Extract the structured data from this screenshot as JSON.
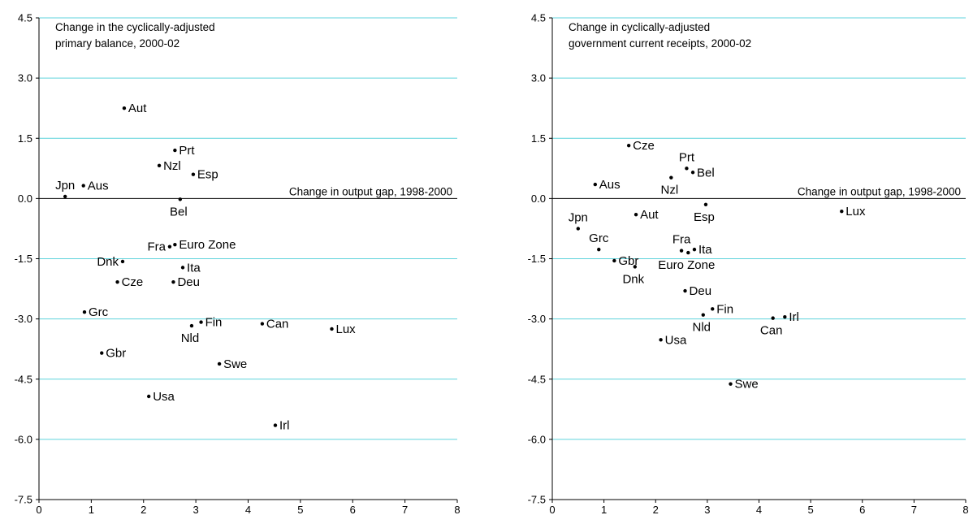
{
  "chart_data": [
    {
      "type": "scatter",
      "title": [
        "Change in the cyclically-adjusted",
        "primary balance, 2000-02"
      ],
      "xlabel": "Change in output gap, 1998-2000",
      "xlim": [
        0,
        8
      ],
      "ylim": [
        -7.5,
        4.5
      ],
      "xticks": [
        "0",
        "1",
        "2",
        "3",
        "4",
        "5",
        "6",
        "7",
        "8"
      ],
      "yticks": [
        "4.5",
        "3.0",
        "1.5",
        "0.0",
        "-1.5",
        "-3.0",
        "-4.5",
        "-6.0",
        "-7.5"
      ],
      "grid": true,
      "points": [
        {
          "label": "Aut",
          "x": 1.63,
          "y": 2.25,
          "pos": "right"
        },
        {
          "label": "Prt",
          "x": 2.6,
          "y": 1.2,
          "pos": "right"
        },
        {
          "label": "Nzl",
          "x": 2.3,
          "y": 0.82,
          "pos": "right"
        },
        {
          "label": "Esp",
          "x": 2.95,
          "y": 0.6,
          "pos": "right"
        },
        {
          "label": "Jpn",
          "x": 0.5,
          "y": 0.05,
          "pos": "above-left"
        },
        {
          "label": "Aus",
          "x": 0.85,
          "y": 0.32,
          "pos": "right"
        },
        {
          "label": "Bel",
          "x": 2.7,
          "y": -0.02,
          "pos": "below"
        },
        {
          "label": "Fra",
          "x": 2.5,
          "y": -1.2,
          "pos": "left"
        },
        {
          "label": "Euro Zone",
          "x": 2.6,
          "y": -1.15,
          "pos": "right"
        },
        {
          "label": "Dnk",
          "x": 1.6,
          "y": -1.57,
          "pos": "left"
        },
        {
          "label": "Ita",
          "x": 2.75,
          "y": -1.72,
          "pos": "right"
        },
        {
          "label": "Cze",
          "x": 1.5,
          "y": -2.08,
          "pos": "right"
        },
        {
          "label": "Deu",
          "x": 2.57,
          "y": -2.08,
          "pos": "right"
        },
        {
          "label": "Grc",
          "x": 0.87,
          "y": -2.83,
          "pos": "right"
        },
        {
          "label": "Fin",
          "x": 3.1,
          "y": -3.08,
          "pos": "right"
        },
        {
          "label": "Nld",
          "x": 2.92,
          "y": -3.17,
          "pos": "below"
        },
        {
          "label": "Can",
          "x": 4.27,
          "y": -3.12,
          "pos": "right"
        },
        {
          "label": "Lux",
          "x": 5.6,
          "y": -3.25,
          "pos": "right"
        },
        {
          "label": "Gbr",
          "x": 1.2,
          "y": -3.85,
          "pos": "right"
        },
        {
          "label": "Swe",
          "x": 3.45,
          "y": -4.12,
          "pos": "right"
        },
        {
          "label": "Usa",
          "x": 2.1,
          "y": -4.93,
          "pos": "right"
        },
        {
          "label": "Irl",
          "x": 4.52,
          "y": -5.65,
          "pos": "right"
        }
      ]
    },
    {
      "type": "scatter",
      "title": [
        "Change in cyclically-adjusted",
        "government current receipts, 2000-02"
      ],
      "xlabel": "Change in output gap, 1998-2000",
      "xlim": [
        0,
        8
      ],
      "ylim": [
        -7.5,
        4.5
      ],
      "xticks": [
        "0",
        "1",
        "2",
        "3",
        "4",
        "5",
        "6",
        "7",
        "8"
      ],
      "yticks": [
        "4.5",
        "3.0",
        "1.5",
        "0.0",
        "-1.5",
        "-3.0",
        "-4.5",
        "-6.0",
        "-7.5"
      ],
      "grid": true,
      "points": [
        {
          "label": "Cze",
          "x": 1.48,
          "y": 1.32,
          "pos": "right"
        },
        {
          "label": "Prt",
          "x": 2.6,
          "y": 0.75,
          "pos": "above-left"
        },
        {
          "label": "Bel",
          "x": 2.72,
          "y": 0.65,
          "pos": "right"
        },
        {
          "label": "Nzl",
          "x": 2.3,
          "y": 0.52,
          "pos": "below"
        },
        {
          "label": "Aus",
          "x": 0.83,
          "y": 0.35,
          "pos": "right"
        },
        {
          "label": "Esp",
          "x": 2.97,
          "y": -0.15,
          "pos": "below"
        },
        {
          "label": "Aut",
          "x": 1.62,
          "y": -0.4,
          "pos": "right"
        },
        {
          "label": "Lux",
          "x": 5.6,
          "y": -0.32,
          "pos": "right"
        },
        {
          "label": "Jpn",
          "x": 0.5,
          "y": -0.75,
          "pos": "above-left"
        },
        {
          "label": "Grc",
          "x": 0.9,
          "y": -1.27,
          "pos": "above-left"
        },
        {
          "label": "Fra",
          "x": 2.5,
          "y": -1.3,
          "pos": "above-left"
        },
        {
          "label": "Ita",
          "x": 2.75,
          "y": -1.27,
          "pos": "right"
        },
        {
          "label": "Euro Zone",
          "x": 2.63,
          "y": -1.35,
          "pos": "below"
        },
        {
          "label": "Gbr",
          "x": 1.2,
          "y": -1.55,
          "pos": "right"
        },
        {
          "label": "Dnk",
          "x": 1.6,
          "y": -1.7,
          "pos": "below"
        },
        {
          "label": "Deu",
          "x": 2.57,
          "y": -2.3,
          "pos": "right"
        },
        {
          "label": "Fin",
          "x": 3.1,
          "y": -2.75,
          "pos": "right"
        },
        {
          "label": "Nld",
          "x": 2.92,
          "y": -2.9,
          "pos": "below"
        },
        {
          "label": "Can",
          "x": 4.27,
          "y": -2.98,
          "pos": "below"
        },
        {
          "label": "Irl",
          "x": 4.5,
          "y": -2.95,
          "pos": "right"
        },
        {
          "label": "Usa",
          "x": 2.1,
          "y": -3.52,
          "pos": "right"
        },
        {
          "label": "Swe",
          "x": 3.45,
          "y": -4.62,
          "pos": "right"
        }
      ]
    }
  ]
}
